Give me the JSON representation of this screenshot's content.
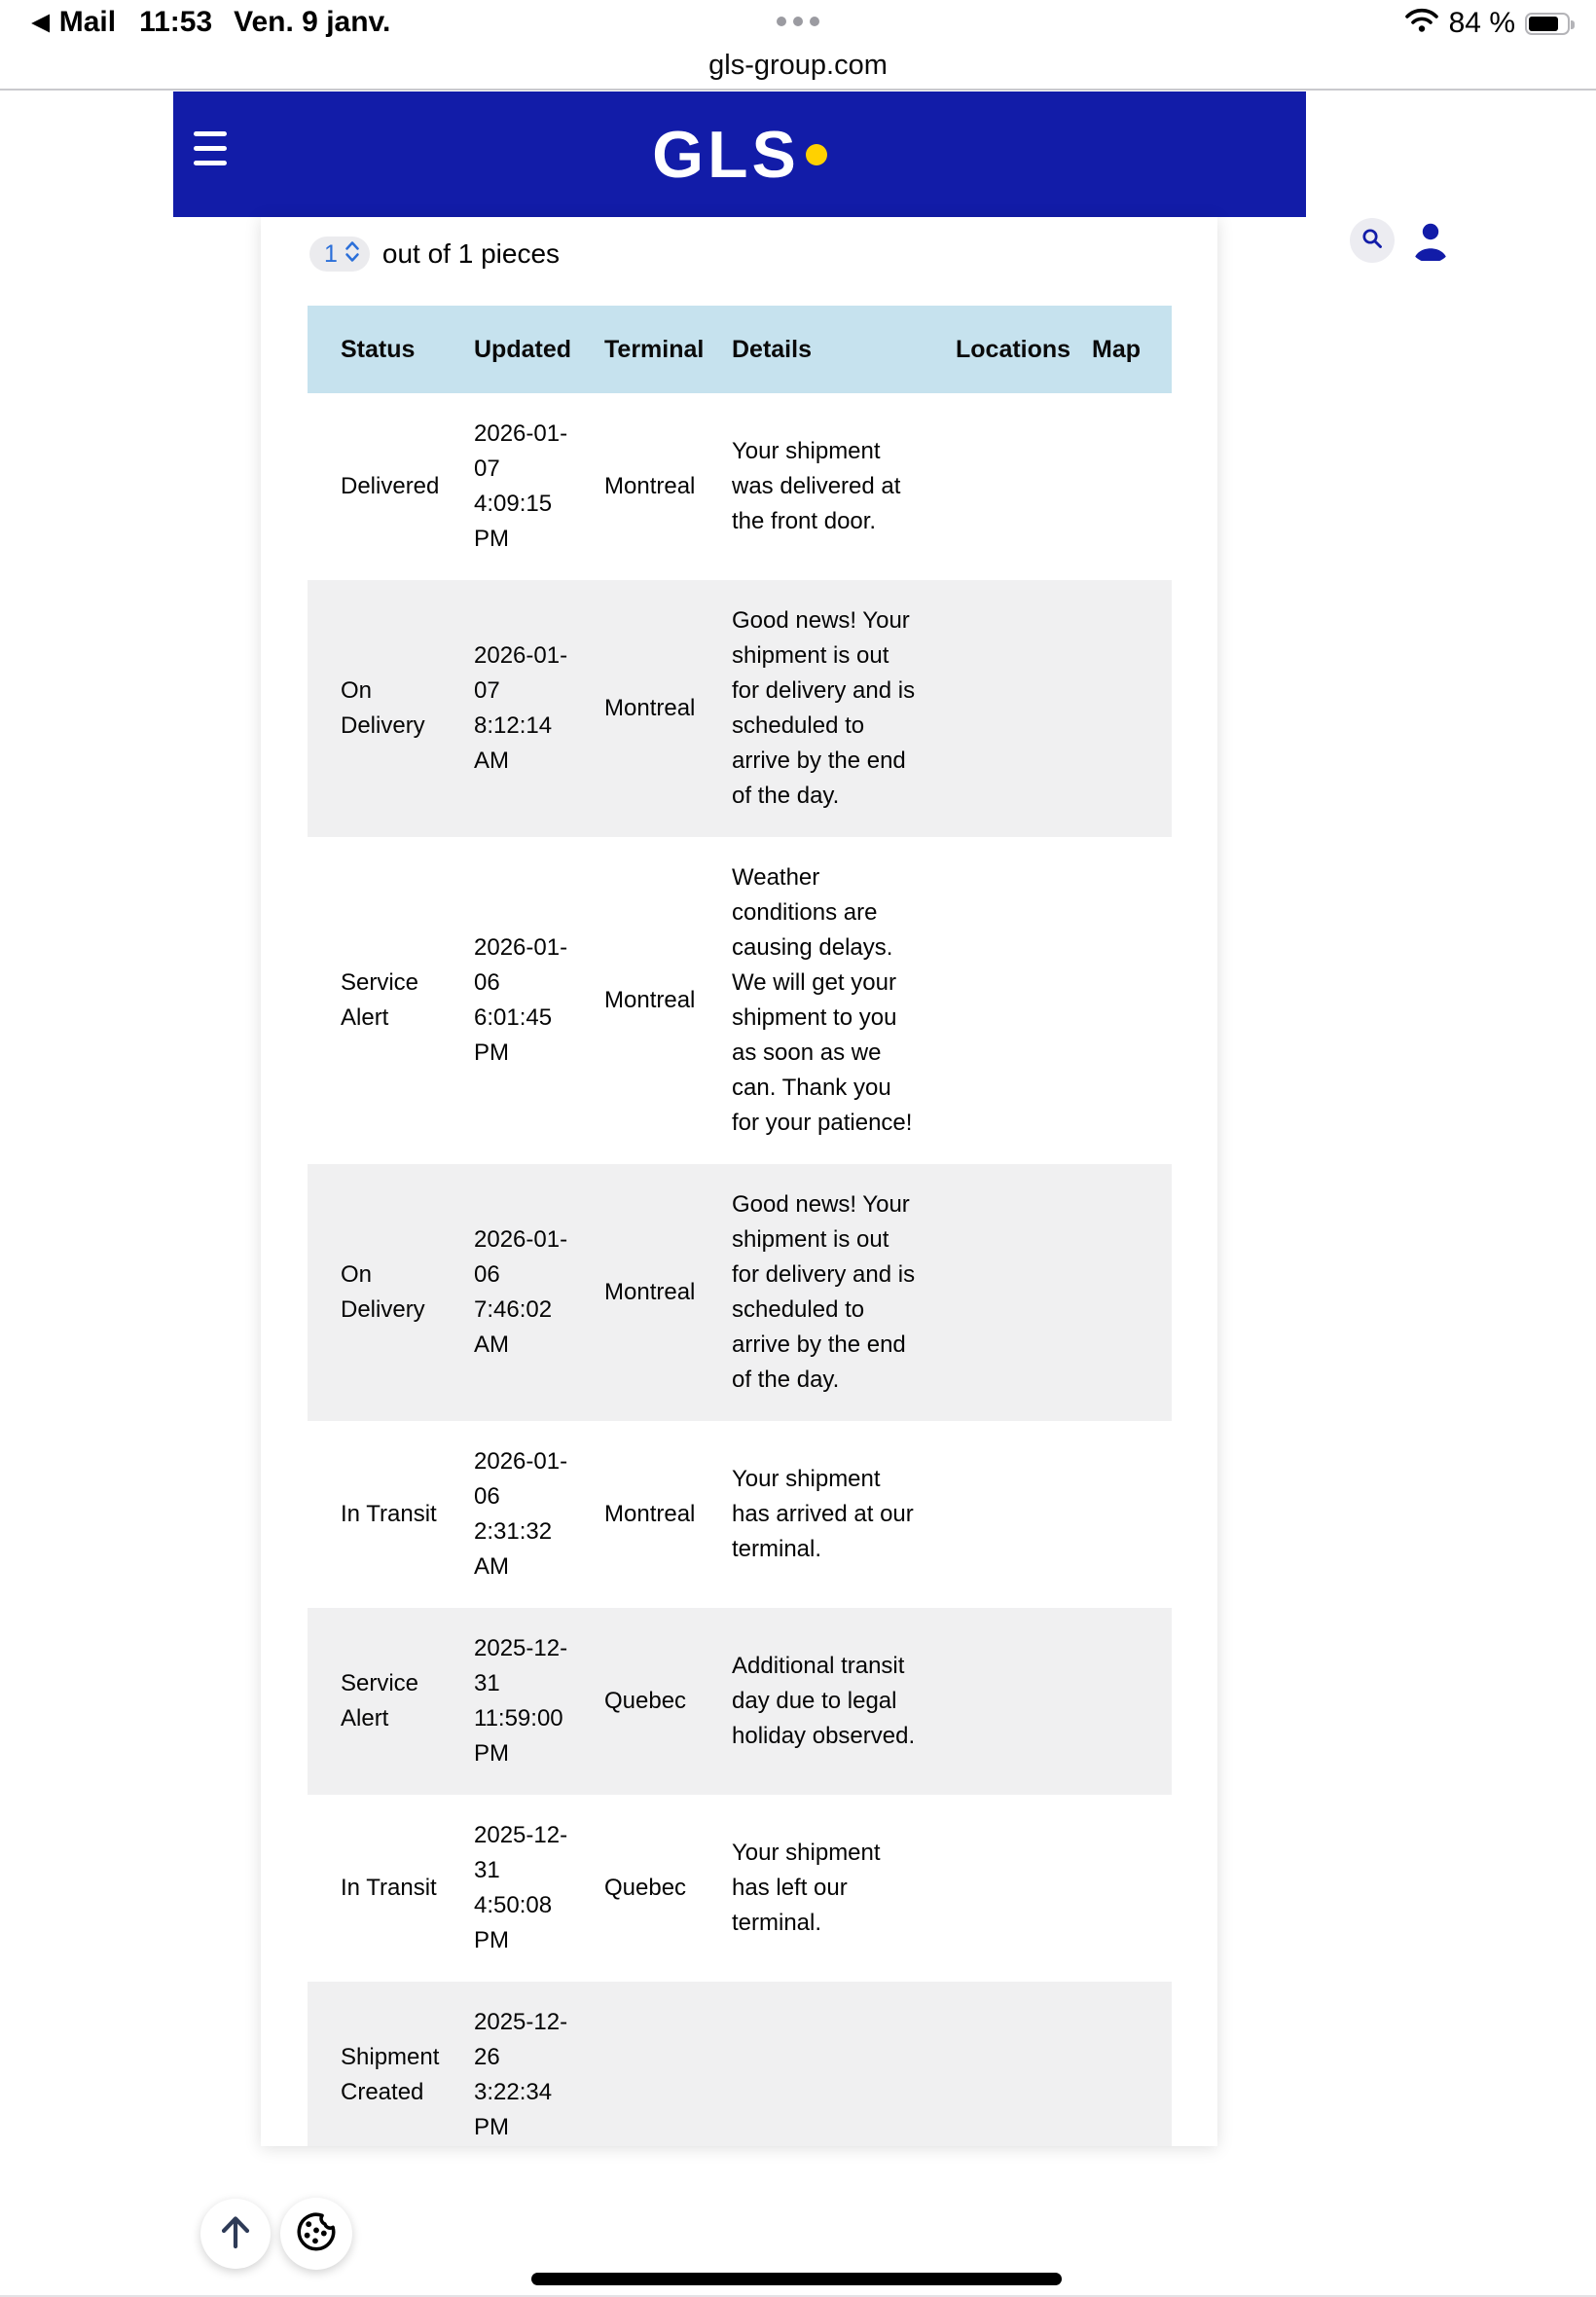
{
  "colors": {
    "brand_blue": "#121CA8",
    "brand_yellow": "#FFD100",
    "table_header_bg": "#C6E2EE",
    "row_alt_bg": "#F0F0F1",
    "stepper_blue": "#2B6FD9"
  },
  "status_bar": {
    "back_app_label": "Mail",
    "time": "11:53",
    "date": "Ven. 9 janv.",
    "battery_label": "84 %",
    "battery_percent": 84
  },
  "url_bar": {
    "url": "gls-group.com"
  },
  "header": {
    "logo_text": "GLS"
  },
  "pieces_selector": {
    "value": "1",
    "label": "out of 1 pieces"
  },
  "tracking_table": {
    "columns": [
      {
        "key": "status",
        "label": "Status"
      },
      {
        "key": "updated",
        "label": "Updated"
      },
      {
        "key": "terminal",
        "label": "Terminal"
      },
      {
        "key": "details",
        "label": "Details"
      },
      {
        "key": "locations",
        "label": "Locations"
      },
      {
        "key": "map",
        "label": "Map"
      }
    ],
    "rows": [
      {
        "status": "Delivered",
        "updated": "2026-01-07 4:09:15 PM",
        "terminal": "Montreal",
        "details": "Your shipment was delivered at the front door.",
        "locations": "",
        "map": ""
      },
      {
        "status": "On Delivery",
        "updated": "2026-01-07 8:12:14 AM",
        "terminal": "Montreal",
        "details": "Good news! Your shipment is out for delivery and is scheduled to arrive by the end of the day.",
        "locations": "",
        "map": ""
      },
      {
        "status": "Service Alert",
        "updated": "2026-01-06 6:01:45 PM",
        "terminal": "Montreal",
        "details": "Weather conditions are causing delays. We will get your shipment to you as soon as we can. Thank you for your patience!",
        "locations": "",
        "map": ""
      },
      {
        "status": "On Delivery",
        "updated": "2026-01-06 7:46:02 AM",
        "terminal": "Montreal",
        "details": "Good news! Your shipment is out for delivery and is scheduled to arrive by the end of the day.",
        "locations": "",
        "map": ""
      },
      {
        "status": "In Transit",
        "updated": "2026-01-06 2:31:32 AM",
        "terminal": "Montreal",
        "details": "Your shipment has arrived at our terminal.",
        "locations": "",
        "map": ""
      },
      {
        "status": "Service Alert",
        "updated": "2025-12-31 11:59:00 PM",
        "terminal": "Quebec",
        "details": "Additional transit day due to legal holiday observed.",
        "locations": "",
        "map": ""
      },
      {
        "status": "In Transit",
        "updated": "2025-12-31 4:50:08 PM",
        "terminal": "Quebec",
        "details": "Your shipment has left our terminal.",
        "locations": "",
        "map": ""
      },
      {
        "status": "Shipment Created",
        "updated": "2025-12-26 3:22:34 PM",
        "terminal": "",
        "details": "",
        "locations": "",
        "map": ""
      }
    ]
  }
}
